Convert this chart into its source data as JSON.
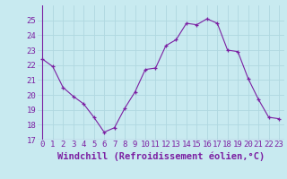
{
  "x": [
    0,
    1,
    2,
    3,
    4,
    5,
    6,
    7,
    8,
    9,
    10,
    11,
    12,
    13,
    14,
    15,
    16,
    17,
    18,
    19,
    20,
    21,
    22,
    23
  ],
  "y": [
    22.4,
    21.9,
    20.5,
    19.9,
    19.4,
    18.5,
    17.5,
    17.8,
    19.1,
    20.2,
    21.7,
    21.8,
    23.3,
    23.7,
    24.8,
    24.7,
    25.1,
    24.8,
    23.0,
    22.9,
    21.1,
    19.7,
    18.5,
    18.4
  ],
  "line_color": "#7b1fa2",
  "marker": "+",
  "marker_color": "#7b1fa2",
  "bg_color": "#c8eaf0",
  "grid_color": "#b0d8e0",
  "xlabel": "Windchill (Refroidissement éolien,°C)",
  "xlabel_color": "#7b1fa2",
  "tick_color": "#7b1fa2",
  "ylim": [
    17,
    26
  ],
  "xlim": [
    -0.5,
    23.5
  ],
  "yticks": [
    17,
    18,
    19,
    20,
    21,
    22,
    23,
    24,
    25
  ],
  "xticks": [
    0,
    1,
    2,
    3,
    4,
    5,
    6,
    7,
    8,
    9,
    10,
    11,
    12,
    13,
    14,
    15,
    16,
    17,
    18,
    19,
    20,
    21,
    22,
    23
  ],
  "xtick_labels": [
    "0",
    "1",
    "2",
    "3",
    "4",
    "5",
    "6",
    "7",
    "8",
    "9",
    "10",
    "11",
    "12",
    "13",
    "14",
    "15",
    "16",
    "17",
    "18",
    "19",
    "20",
    "21",
    "22",
    "23"
  ],
  "font_size": 6.5,
  "xlabel_fontsize": 7.5
}
